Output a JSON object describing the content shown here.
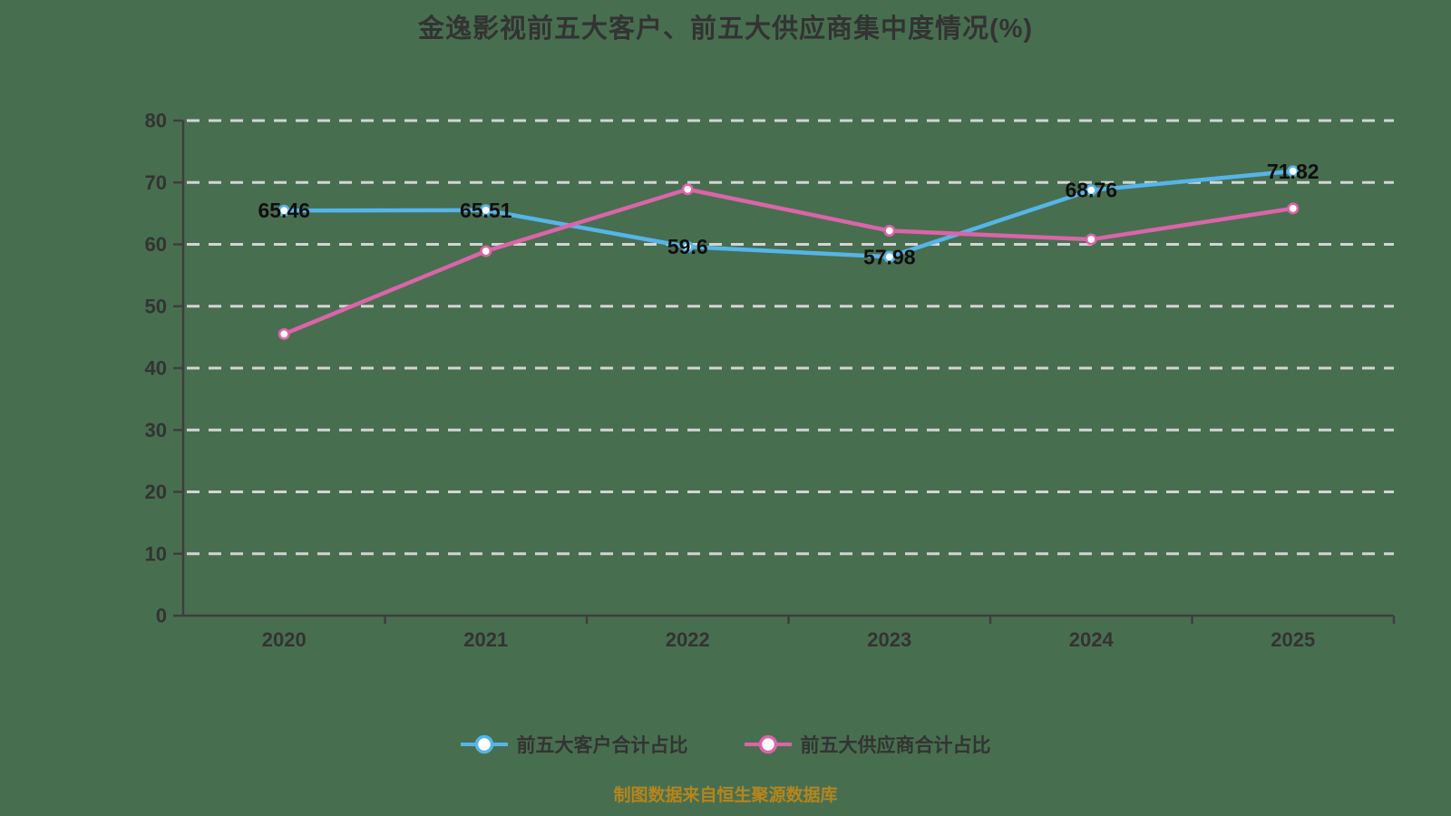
{
  "title": "金逸影视前五大客户、前五大供应商集中度情况(%)",
  "footer": "制图数据来自恒生聚源数据库",
  "colors": {
    "background": "#486E50",
    "series1": "#55B5E9",
    "series2": "#DC64A9",
    "grid": "#D4D4D4",
    "axis": "#3E3E3E",
    "tick_label": "#333333",
    "data_label": "#0F0F0F",
    "marker_fill": "#FFFFFF",
    "title_color": "#333333",
    "footer_color": "#B5861C"
  },
  "chart_data": {
    "type": "line",
    "title": "金逸影视前五大客户、前五大供应商集中度情况(%)",
    "categories": [
      "2020",
      "2021",
      "2022",
      "2023",
      "2024",
      "2025"
    ],
    "series": [
      {
        "name": "前五大客户合计占比",
        "color": "#55B5E9",
        "values": [
          65.46,
          65.51,
          59.6,
          57.98,
          68.76,
          71.82
        ],
        "labels": [
          "65.46",
          "65.51",
          "59.6",
          "57.98",
          "68.76",
          "71.82"
        ]
      },
      {
        "name": "前五大供应商合计占比",
        "color": "#DC64A9",
        "values": [
          45.5,
          58.9,
          68.9,
          62.2,
          60.8,
          65.8
        ],
        "labels": [
          "",
          "",
          "",
          "",
          "",
          ""
        ]
      }
    ],
    "ylim": [
      0,
      80
    ],
    "ytick_step": 10,
    "yticks": [
      "0",
      "10",
      "20",
      "30",
      "40",
      "50",
      "60",
      "70",
      "80"
    ],
    "grid": "dashed",
    "legend_position": "bottom",
    "xlabel": "",
    "ylabel": ""
  }
}
